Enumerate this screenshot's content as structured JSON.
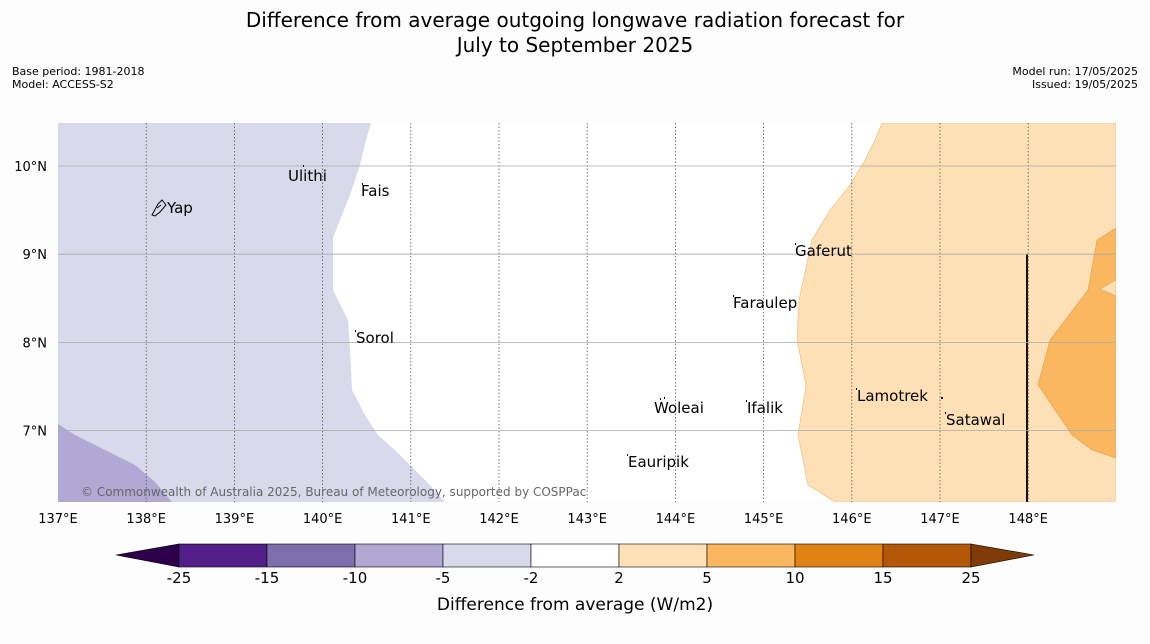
{
  "title_line1": "Difference from average outgoing longwave radiation forecast for",
  "title_line2": "July to September 2025",
  "base_period": "Base period: 1981-2018",
  "model": "Model: ACCESS-S2",
  "model_run": "Model run: 17/05/2025",
  "issued": "Issued: 19/05/2025",
  "copyright": "© Commonwealth of Australia 2025, Bureau of Meteorology, supported by COSPPac",
  "map": {
    "lon_labels": [
      "137°E",
      "138°E",
      "139°E",
      "140°E",
      "141°E",
      "142°E",
      "143°E",
      "144°E",
      "145°E",
      "146°E",
      "147°E",
      "148°E"
    ],
    "lat_labels": [
      "10°N",
      "9°N",
      "8°N",
      "7°N"
    ],
    "places": [
      "Ulithi",
      "Fais",
      "Yap",
      "Gaferut",
      "Faraulep",
      "Sorol",
      "Lamotrek",
      "Woleai",
      "Ifalik",
      "Satawal",
      "Eauripik"
    ]
  },
  "colorbar": {
    "ticks": [
      "-25",
      "-15",
      "-10",
      "-5",
      "-2",
      "2",
      "5",
      "10",
      "15",
      "25"
    ],
    "colors": [
      "#53208a",
      "#7f6ead",
      "#b1a9d3",
      "#d8d9ea",
      "#ffffff",
      "#fde0b6",
      "#fbb660",
      "#e08214",
      "#b35806"
    ],
    "under_color": "#2d004b",
    "over_color": "#7f3b08",
    "label": "Difference from average (W/m2)"
  }
}
